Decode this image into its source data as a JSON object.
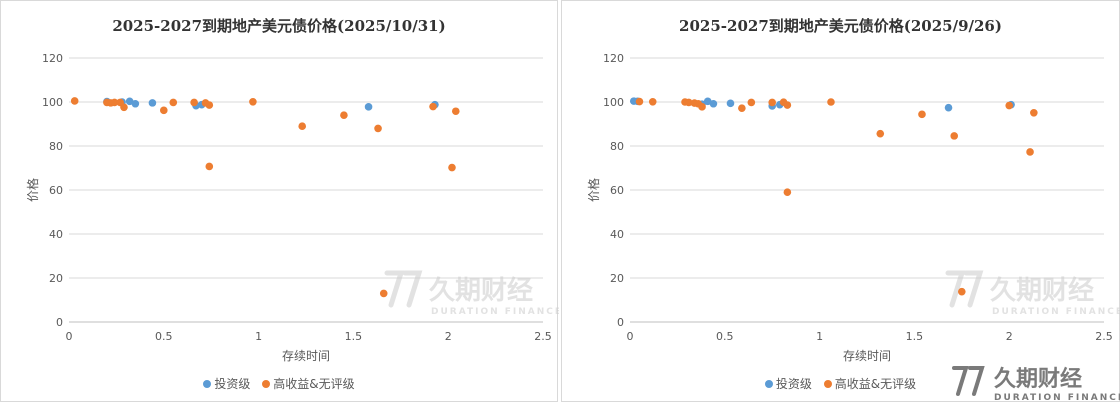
{
  "colors": {
    "investment_grade": "#5B9BD5",
    "high_yield": "#ED7D31",
    "gridline": "#d9d9d9",
    "watermark": "#cfcfcf",
    "logo": "#7a7a7a"
  },
  "watermark": {
    "cn": "久期财经",
    "en": "DURATION FINANCE"
  },
  "logo": {
    "cn": "久期财经",
    "en": "DURATION FINANCE"
  },
  "chart_data": [
    {
      "type": "scatter",
      "title": "2025-2027到期地产美元债价格(2025/10/31)",
      "xlabel": "存续时间",
      "ylabel": "价格",
      "xlim": [
        0,
        2.5
      ],
      "ylim": [
        0,
        120
      ],
      "xticks": [
        "0",
        "0.5",
        "1",
        "1.5",
        "2",
        "2.5"
      ],
      "yticks": [
        "0",
        "20",
        "40",
        "60",
        "80",
        "100",
        "120"
      ],
      "grid": "horizontal",
      "legend_position": "bottom",
      "series": [
        {
          "name": "投资级",
          "color": "#5B9BD5",
          "points": [
            [
              0.2,
              100.2
            ],
            [
              0.28,
              100.0
            ],
            [
              0.32,
              100.3
            ],
            [
              0.35,
              99.2
            ],
            [
              0.44,
              99.6
            ],
            [
              0.67,
              98.3
            ],
            [
              0.7,
              98.8
            ],
            [
              1.58,
              97.8
            ],
            [
              1.93,
              98.8
            ]
          ]
        },
        {
          "name": "高收益&无评级",
          "color": "#ED7D31",
          "points": [
            [
              0.03,
              100.5
            ],
            [
              0.2,
              99.8
            ],
            [
              0.22,
              99.6
            ],
            [
              0.24,
              99.8
            ],
            [
              0.27,
              99.8
            ],
            [
              0.29,
              97.6
            ],
            [
              0.5,
              96.2
            ],
            [
              0.55,
              99.8
            ],
            [
              0.66,
              99.8
            ],
            [
              0.72,
              99.6
            ],
            [
              0.74,
              98.6
            ],
            [
              0.74,
              70.7
            ],
            [
              0.97,
              100.1
            ],
            [
              1.23,
              89.0
            ],
            [
              1.45,
              94.0
            ],
            [
              1.63,
              88.0
            ],
            [
              1.66,
              13.0
            ],
            [
              1.92,
              97.9
            ],
            [
              2.02,
              70.2
            ],
            [
              2.04,
              95.8
            ]
          ]
        }
      ]
    },
    {
      "type": "scatter",
      "title": "2025-2027到期地产美元债价格(2025/9/26)",
      "xlabel": "存续时间",
      "ylabel": "价格",
      "xlim": [
        0,
        2.5
      ],
      "ylim": [
        0,
        120
      ],
      "xticks": [
        "0",
        "0.5",
        "1",
        "1.5",
        "2",
        "2.5"
      ],
      "yticks": [
        "0",
        "20",
        "40",
        "60",
        "80",
        "100",
        "120"
      ],
      "grid": "horizontal",
      "legend_position": "bottom",
      "series": [
        {
          "name": "投资级",
          "color": "#5B9BD5",
          "points": [
            [
              0.02,
              100.4
            ],
            [
              0.04,
              100.3
            ],
            [
              0.38,
              99.0
            ],
            [
              0.41,
              100.3
            ],
            [
              0.44,
              99.2
            ],
            [
              0.53,
              99.4
            ],
            [
              0.75,
              98.2
            ],
            [
              0.79,
              98.8
            ],
            [
              1.68,
              97.4
            ],
            [
              2.01,
              98.8
            ]
          ]
        },
        {
          "name": "高收益&无评级",
          "color": "#ED7D31",
          "points": [
            [
              0.05,
              100.2
            ],
            [
              0.12,
              100.1
            ],
            [
              0.29,
              100.0
            ],
            [
              0.31,
              99.8
            ],
            [
              0.34,
              99.5
            ],
            [
              0.36,
              99.2
            ],
            [
              0.38,
              97.8
            ],
            [
              0.59,
              97.2
            ],
            [
              0.64,
              99.8
            ],
            [
              0.75,
              99.8
            ],
            [
              0.81,
              99.9
            ],
            [
              0.83,
              98.6
            ],
            [
              0.83,
              59.0
            ],
            [
              1.06,
              100.0
            ],
            [
              1.32,
              85.6
            ],
            [
              1.54,
              94.4
            ],
            [
              1.71,
              84.6
            ],
            [
              1.75,
              13.8
            ],
            [
              2.0,
              98.4
            ],
            [
              2.11,
              77.3
            ],
            [
              2.13,
              95.1
            ]
          ]
        }
      ]
    }
  ]
}
